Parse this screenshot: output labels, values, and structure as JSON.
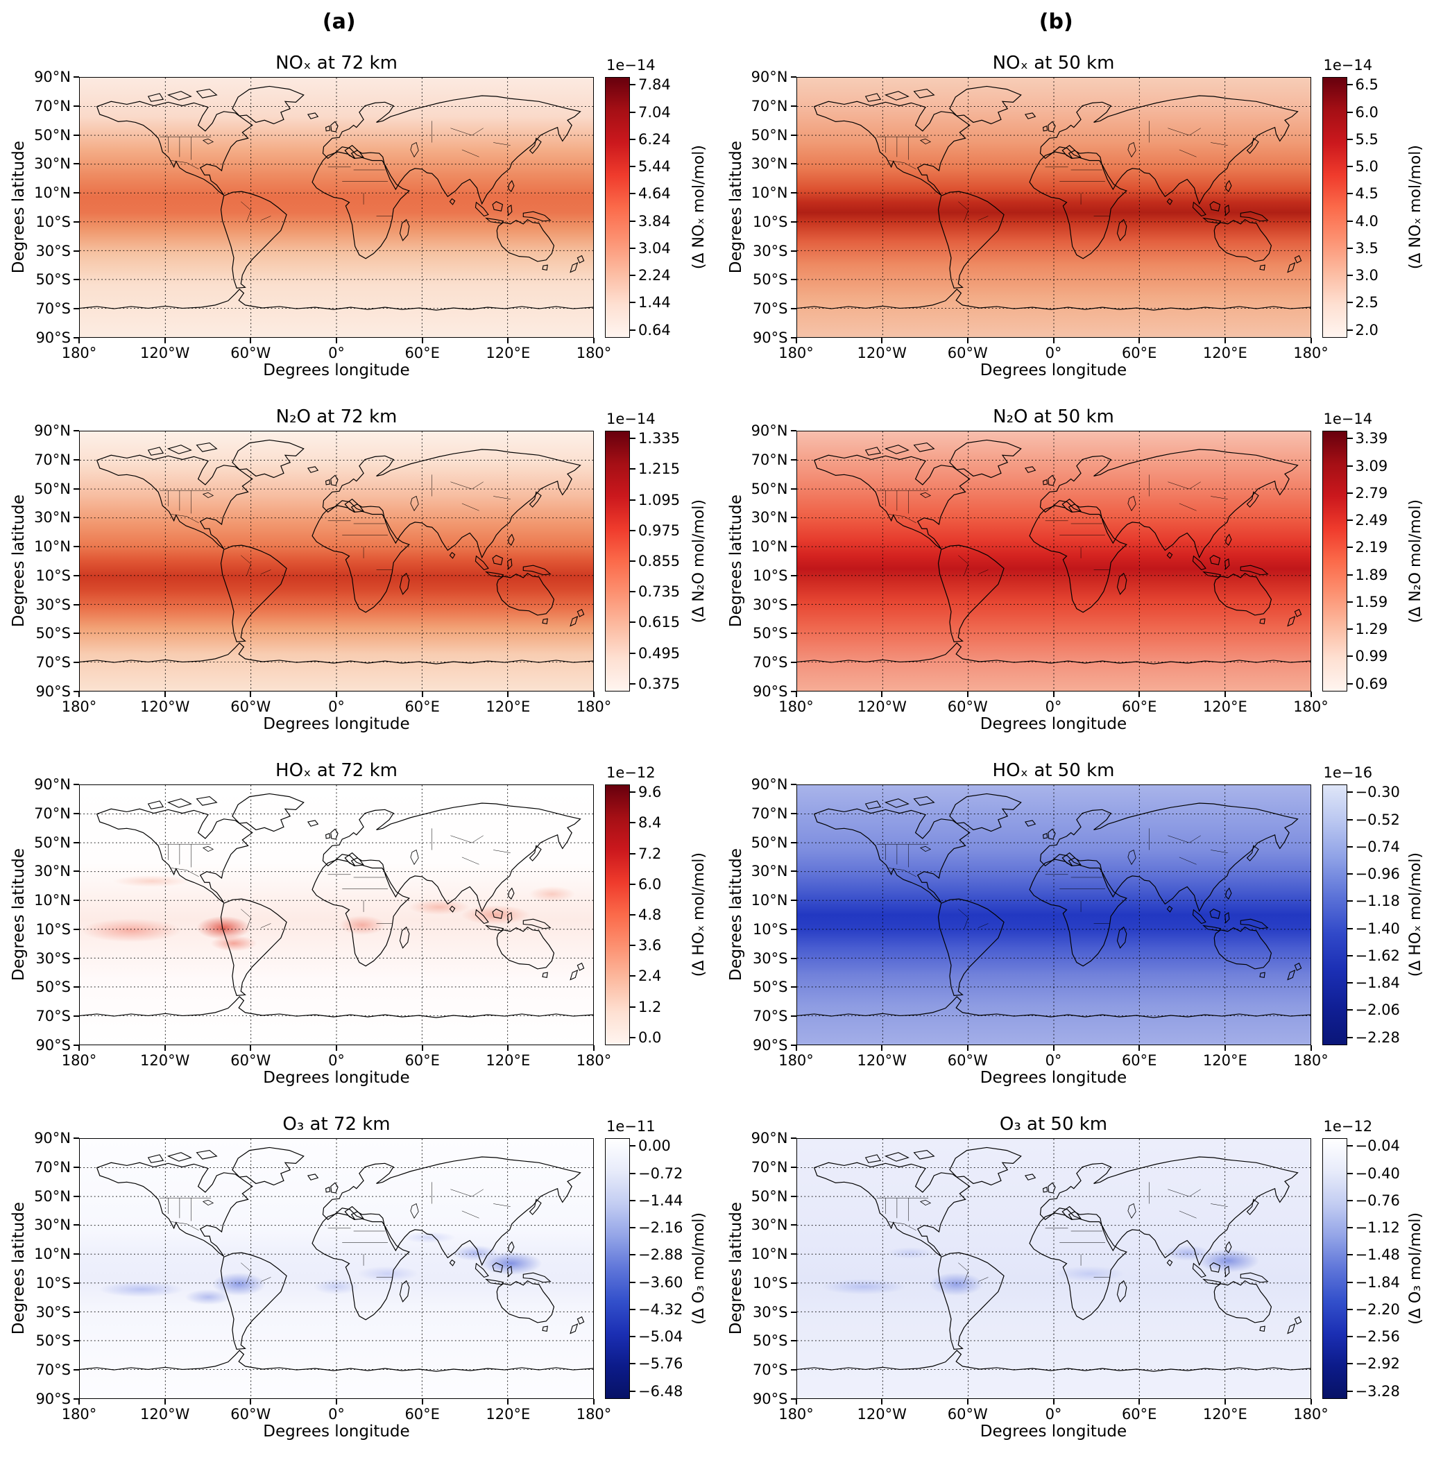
{
  "figure": {
    "column_labels": [
      "(a)",
      "(b)"
    ],
    "xlabel": "Degrees longitude",
    "ylabel": "Degrees latitude",
    "lat_ticks": [
      "90°N",
      "70°N",
      "50°N",
      "30°N",
      "10°N",
      "10°S",
      "30°S",
      "50°S",
      "70°S",
      "90°S"
    ],
    "lon_ticks": [
      "180°",
      "120°W",
      "60°W",
      "0°",
      "60°E",
      "120°E",
      "180°"
    ]
  },
  "chart_data": [
    {
      "type": "heatmap",
      "panel": "a1",
      "column": "a",
      "species": "NOx",
      "altitude_km": 72,
      "title": "NOₓ at 72 km",
      "colorbar": {
        "exponent": "1e−14",
        "ticks": [
          "7.84",
          "7.04",
          "6.24",
          "5.44",
          "4.64",
          "3.84",
          "3.04",
          "2.24",
          "1.44",
          "0.64"
        ],
        "label": "(Δ NOₓ mol/mol)",
        "colormap": "Reds",
        "gradient": [
          "#67000d",
          "#a50f15",
          "#cb181d",
          "#ef3b2c",
          "#fb6a4a",
          "#fc9272",
          "#fcbba1",
          "#fee0d2",
          "#fff5f0"
        ]
      },
      "map_gradient": [
        [
          "0%",
          "#fceae1"
        ],
        [
          "15%",
          "#fadaca"
        ],
        [
          "28%",
          "#f4ad87"
        ],
        [
          "38%",
          "#ee8a60"
        ],
        [
          "46%",
          "#ea7048"
        ],
        [
          "52%",
          "#eb764e"
        ],
        [
          "58%",
          "#ef9468"
        ],
        [
          "68%",
          "#f6c4a4"
        ],
        [
          "80%",
          "#fbe0cf"
        ],
        [
          "100%",
          "#fcece2"
        ]
      ],
      "map_blobs": []
    },
    {
      "type": "heatmap",
      "panel": "b1",
      "column": "b",
      "species": "NOx",
      "altitude_km": 50,
      "title": "NOₓ at 50 km",
      "colorbar": {
        "exponent": "1e−14",
        "ticks": [
          "6.5",
          "6.0",
          "5.5",
          "5.0",
          "4.5",
          "4.0",
          "3.5",
          "3.0",
          "2.5",
          "2.0"
        ],
        "label": "(Δ NOₓ mol/mol)",
        "colormap": "Reds",
        "gradient": [
          "#67000d",
          "#a50f15",
          "#cb181d",
          "#ef3b2c",
          "#fb6a4a",
          "#fc9272",
          "#fcbba1",
          "#fee0d2",
          "#fff5f0"
        ]
      },
      "map_gradient": [
        [
          "0%",
          "#f7cdb7"
        ],
        [
          "12%",
          "#f5b89d"
        ],
        [
          "25%",
          "#f09b75"
        ],
        [
          "35%",
          "#ea7a51"
        ],
        [
          "43%",
          "#dd5231"
        ],
        [
          "48%",
          "#c22d1c"
        ],
        [
          "52%",
          "#b02015"
        ],
        [
          "56%",
          "#c93720"
        ],
        [
          "63%",
          "#e3603f"
        ],
        [
          "72%",
          "#ee8a62"
        ],
        [
          "85%",
          "#f3ad88"
        ],
        [
          "100%",
          "#f6c3a9"
        ]
      ],
      "map_blobs": []
    },
    {
      "type": "heatmap",
      "panel": "a2",
      "column": "a",
      "species": "N2O",
      "altitude_km": 72,
      "title": "N₂O at 72 km",
      "colorbar": {
        "exponent": "1e−14",
        "ticks": [
          "1.335",
          "1.215",
          "1.095",
          "0.975",
          "0.855",
          "0.735",
          "0.615",
          "0.495",
          "0.375"
        ],
        "label": "(Δ N₂O mol/mol)",
        "colormap": "Reds",
        "gradient": [
          "#67000d",
          "#a50f15",
          "#cb181d",
          "#ef3b2c",
          "#fb6a4a",
          "#fc9272",
          "#fcbba1",
          "#fee0d2",
          "#fff5f0"
        ]
      },
      "map_gradient": [
        [
          "0%",
          "#fdf0e8"
        ],
        [
          "12%",
          "#fbe0d0"
        ],
        [
          "25%",
          "#f7bda0"
        ],
        [
          "35%",
          "#f29a72"
        ],
        [
          "44%",
          "#ec7a50"
        ],
        [
          "50%",
          "#e05634"
        ],
        [
          "56%",
          "#cf3a22"
        ],
        [
          "61%",
          "#d94a2c"
        ],
        [
          "68%",
          "#ea7049"
        ],
        [
          "76%",
          "#f2a377"
        ],
        [
          "86%",
          "#f8cdb2"
        ],
        [
          "100%",
          "#fbe2d1"
        ]
      ],
      "map_blobs": []
    },
    {
      "type": "heatmap",
      "panel": "b2",
      "column": "b",
      "species": "N2O",
      "altitude_km": 50,
      "title": "N₂O at 50 km",
      "colorbar": {
        "exponent": "1e−14",
        "ticks": [
          "3.39",
          "3.09",
          "2.79",
          "2.49",
          "2.19",
          "1.89",
          "1.59",
          "1.29",
          "0.99",
          "0.69"
        ],
        "label": "(Δ N₂O mol/mol)",
        "colormap": "Reds",
        "gradient": [
          "#67000d",
          "#a50f15",
          "#cb181d",
          "#ef3b2c",
          "#fb6a4a",
          "#fc9272",
          "#fcbba1",
          "#fee0d2",
          "#fff5f0"
        ]
      },
      "map_gradient": [
        [
          "0%",
          "#f8bfae"
        ],
        [
          "10%",
          "#f5a48d"
        ],
        [
          "22%",
          "#f28268"
        ],
        [
          "33%",
          "#ef5f45"
        ],
        [
          "42%",
          "#e63b2d"
        ],
        [
          "48%",
          "#d42320"
        ],
        [
          "53%",
          "#c0171a"
        ],
        [
          "58%",
          "#cf2a22"
        ],
        [
          "66%",
          "#e74733"
        ],
        [
          "76%",
          "#ef6950"
        ],
        [
          "88%",
          "#f3907a"
        ],
        [
          "100%",
          "#f6ad96"
        ]
      ],
      "map_blobs": []
    },
    {
      "type": "heatmap",
      "panel": "a3",
      "column": "a",
      "species": "HOx",
      "altitude_km": 72,
      "title": "HOₓ at 72 km",
      "colorbar": {
        "exponent": "1e−12",
        "ticks": [
          "9.6",
          "8.4",
          "7.2",
          "6.0",
          "4.8",
          "3.6",
          "2.4",
          "1.2",
          "0.0"
        ],
        "label": "(Δ HOₓ mol/mol)",
        "colormap": "Reds",
        "gradient": [
          "#67000d",
          "#a50f15",
          "#cb181d",
          "#ef3b2c",
          "#fb6a4a",
          "#fc9272",
          "#fcbba1",
          "#fee0d2",
          "#fff5f0"
        ]
      },
      "map_gradient": [
        [
          "0%",
          "#ffffff"
        ],
        [
          "30%",
          "#fffdfd"
        ],
        [
          "42%",
          "#fef3f0"
        ],
        [
          "52%",
          "#fdebe6"
        ],
        [
          "62%",
          "#fef2ef"
        ],
        [
          "75%",
          "#fffafa"
        ],
        [
          "100%",
          "#ffffff"
        ]
      ],
      "map_blobs": [
        {
          "x": 10,
          "y": 56,
          "rx": 13,
          "ry": 6,
          "c": "rgba(240,100,80,0.45)"
        },
        {
          "x": 28,
          "y": 55,
          "rx": 7,
          "ry": 6,
          "c": "rgba(220,55,40,0.75)"
        },
        {
          "x": 30,
          "y": 61,
          "rx": 6,
          "ry": 4,
          "c": "rgba(235,90,70,0.5)"
        },
        {
          "x": 55,
          "y": 54,
          "rx": 6,
          "ry": 5,
          "c": "rgba(235,100,80,0.45)"
        },
        {
          "x": 70,
          "y": 47,
          "rx": 8,
          "ry": 4,
          "c": "rgba(240,120,95,0.4)"
        },
        {
          "x": 81,
          "y": 50,
          "rx": 9,
          "ry": 5,
          "c": "rgba(238,110,85,0.45)"
        },
        {
          "x": 14,
          "y": 37,
          "rx": 10,
          "ry": 3,
          "c": "rgba(245,150,125,0.35)"
        },
        {
          "x": 92,
          "y": 42,
          "rx": 6,
          "ry": 4,
          "c": "rgba(242,130,105,0.35)"
        }
      ]
    },
    {
      "type": "heatmap",
      "panel": "b3",
      "column": "b",
      "species": "HOx",
      "altitude_km": 50,
      "title": "HOₓ at 50 km",
      "colorbar": {
        "exponent": "1e−16",
        "ticks": [
          "−0.30",
          "−0.52",
          "−0.74",
          "−0.96",
          "−1.18",
          "−1.40",
          "−1.62",
          "−1.84",
          "−2.06",
          "−2.28"
        ],
        "label": "(Δ HOₓ mol/mol)",
        "colormap": "Blues_r",
        "gradient": [
          "#dfe6f8",
          "#b9c6f0",
          "#8da0e6",
          "#5c73d8",
          "#3149c9",
          "#1b2fb4",
          "#101f95",
          "#0a1678"
        ]
      },
      "map_gradient": [
        [
          "0%",
          "#a9b4ea"
        ],
        [
          "12%",
          "#93a1e5"
        ],
        [
          "25%",
          "#7e8edf"
        ],
        [
          "35%",
          "#5e71d6"
        ],
        [
          "44%",
          "#3a50cb"
        ],
        [
          "50%",
          "#2238c2"
        ],
        [
          "56%",
          "#2a40c6"
        ],
        [
          "63%",
          "#4a5ed1"
        ],
        [
          "73%",
          "#7181da"
        ],
        [
          "85%",
          "#8e9ce2"
        ],
        [
          "100%",
          "#a3aee8"
        ]
      ],
      "map_blobs": []
    },
    {
      "type": "heatmap",
      "panel": "a4",
      "column": "a",
      "species": "O3",
      "altitude_km": 72,
      "title": "O₃ at 72 km",
      "colorbar": {
        "exponent": "1e−11",
        "ticks": [
          "0.00",
          "−0.72",
          "−1.44",
          "−2.16",
          "−2.88",
          "−3.60",
          "−4.32",
          "−5.04",
          "−5.76",
          "−6.48"
        ],
        "label": "(Δ O₃ mol/mol)",
        "colormap": "Blues",
        "gradient": [
          "#ffffff",
          "#e7ebfa",
          "#c3cdf2",
          "#93a4e7",
          "#5f76d9",
          "#3350cb",
          "#1b2fb4",
          "#0c1b8a",
          "#071266"
        ]
      },
      "map_gradient": [
        [
          "0%",
          "#fdfdff"
        ],
        [
          "35%",
          "#f7f8fe"
        ],
        [
          "45%",
          "#eef0fc"
        ],
        [
          "55%",
          "#eceefb"
        ],
        [
          "65%",
          "#f5f6fd"
        ],
        [
          "100%",
          "#fdfdff"
        ]
      ],
      "map_blobs": [
        {
          "x": 31,
          "y": 56,
          "rx": 7,
          "ry": 6,
          "c": "rgba(70,95,215,0.55)"
        },
        {
          "x": 25,
          "y": 61,
          "rx": 6,
          "ry": 4,
          "c": "rgba(90,110,220,0.4)"
        },
        {
          "x": 84,
          "y": 48,
          "rx": 8,
          "ry": 6,
          "c": "rgba(60,85,210,0.6)"
        },
        {
          "x": 77,
          "y": 44,
          "rx": 6,
          "ry": 4,
          "c": "rgba(100,120,225,0.45)"
        },
        {
          "x": 12,
          "y": 58,
          "rx": 11,
          "ry": 4,
          "c": "rgba(110,130,230,0.4)"
        },
        {
          "x": 60,
          "y": 52,
          "rx": 8,
          "ry": 4,
          "c": "rgba(130,145,235,0.3)"
        },
        {
          "x": 68,
          "y": 38,
          "rx": 7,
          "ry": 3,
          "c": "rgba(140,155,238,0.3)"
        },
        {
          "x": 50,
          "y": 57,
          "rx": 6,
          "ry": 4,
          "c": "rgba(120,140,232,0.3)"
        }
      ]
    },
    {
      "type": "heatmap",
      "panel": "b4",
      "column": "b",
      "species": "O3",
      "altitude_km": 50,
      "title": "O₃ at 50 km",
      "colorbar": {
        "exponent": "1e−12",
        "ticks": [
          "−0.04",
          "−0.40",
          "−0.76",
          "−1.12",
          "−1.48",
          "−1.84",
          "−2.20",
          "−2.56",
          "−2.92",
          "−3.28"
        ],
        "label": "(Δ O₃ mol/mol)",
        "colormap": "Blues",
        "gradient": [
          "#ffffff",
          "#e7ebfa",
          "#c3cdf2",
          "#93a4e7",
          "#5f76d9",
          "#3350cb",
          "#1b2fb4",
          "#0c1b8a",
          "#071266"
        ]
      },
      "map_gradient": [
        [
          "0%",
          "#eceefb"
        ],
        [
          "40%",
          "#e6e9fa"
        ],
        [
          "55%",
          "#e2e6f9"
        ],
        [
          "70%",
          "#e9ecfa"
        ],
        [
          "100%",
          "#eff1fc"
        ]
      ],
      "map_blobs": [
        {
          "x": 31,
          "y": 56,
          "rx": 7,
          "ry": 6,
          "c": "rgba(70,95,215,0.5)"
        },
        {
          "x": 84,
          "y": 47,
          "rx": 8,
          "ry": 6,
          "c": "rgba(60,85,210,0.55)"
        },
        {
          "x": 76,
          "y": 44,
          "rx": 6,
          "ry": 4,
          "c": "rgba(100,120,225,0.4)"
        },
        {
          "x": 13,
          "y": 57,
          "rx": 11,
          "ry": 4,
          "c": "rgba(110,130,230,0.35)"
        },
        {
          "x": 57,
          "y": 52,
          "rx": 9,
          "ry": 4,
          "c": "rgba(130,148,235,0.3)"
        },
        {
          "x": 22,
          "y": 44,
          "rx": 6,
          "ry": 3,
          "c": "rgba(140,155,238,0.3)"
        }
      ]
    }
  ]
}
